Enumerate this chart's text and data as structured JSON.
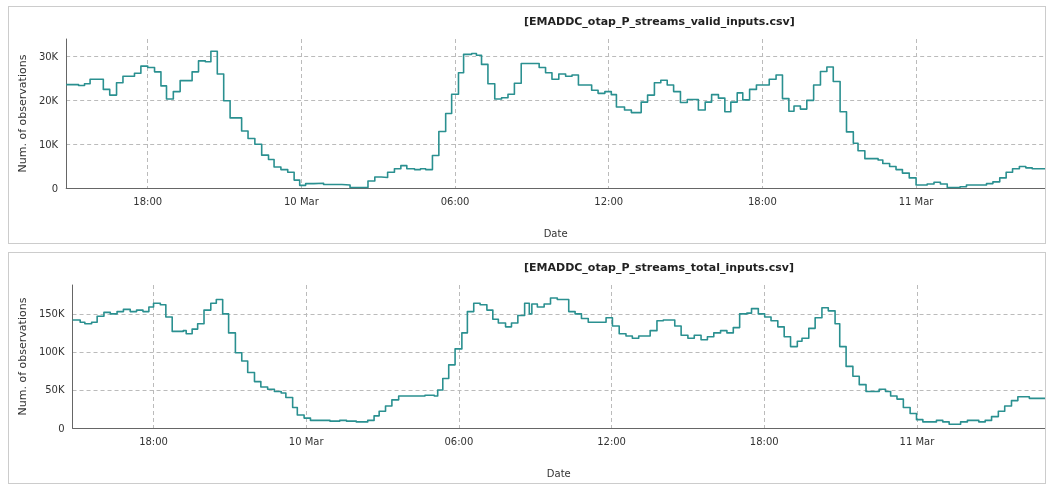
{
  "chart_data": [
    {
      "type": "step",
      "title": "[EMADDC_otap_P_streams_valid_inputs.csv]",
      "xlabel": "Date",
      "ylabel": "Num. of observations",
      "grid": true,
      "xlim": [
        "--03-09T14:49",
        "--03-11T05:02"
      ],
      "ylim": [
        0,
        34000
      ],
      "xticks": [
        {
          "value": "--03-09T18:00",
          "label": "18:00"
        },
        {
          "value": "--03-10",
          "label": "10 Mar"
        },
        {
          "value": "--03-10T06:00",
          "label": "06:00"
        },
        {
          "value": "--03-10T12:00",
          "label": "12:00"
        },
        {
          "value": "--03-10T18:00",
          "label": "18:00"
        },
        {
          "value": "--03-11",
          "label": "11 Mar"
        }
      ],
      "yticks": [
        0,
        {
          "value": 10000,
          "label": "10K"
        },
        {
          "value": 20000,
          "label": "20K"
        },
        {
          "value": 30000,
          "label": "30K"
        }
      ],
      "series": [
        {
          "color": "#2a9090",
          "x": [
            "--03-09T14:49",
            "--03-09T15:18",
            "--03-09T15:32",
            "--03-09T15:45",
            "--03-09T16:16",
            "--03-09T16:31",
            "--03-09T16:47",
            "--03-09T17:02",
            "--03-09T17:29",
            "--03-09T17:44",
            "--03-09T18:00",
            "--03-09T18:16",
            "--03-09T18:31",
            "--03-09T18:44",
            "--03-09T19:00",
            "--03-09T19:16",
            "--03-09T19:44",
            "--03-09T19:59",
            "--03-09T20:15",
            "--03-09T20:28",
            "--03-09T20:43",
            "--03-09T20:58",
            "--03-09T21:13",
            "--03-09T21:40",
            "--03-09T21:55",
            "--03-09T22:11",
            "--03-09T22:27",
            "--03-09T22:43",
            "--03-09T22:56",
            "--03-09T23:12",
            "--03-09T23:28",
            "--03-09T23:43",
            "--03-09T23:56",
            "--03-10T00:10",
            "--03-10T00:29",
            "--03-10T00:52",
            "--03-10T01:15",
            "--03-10T01:35",
            "--03-10T01:54",
            "--03-10T02:20",
            "--03-10T02:36",
            "--03-10T02:52",
            "--03-10T03:07",
            "--03-10T03:22",
            "--03-10T03:38",
            "--03-10T03:53",
            "--03-10T04:07",
            "--03-10T04:25",
            "--03-10T04:39",
            "--03-10T04:51",
            "--03-10T05:07",
            "--03-10T05:22",
            "--03-10T05:38",
            "--03-10T05:52",
            "--03-10T06:08",
            "--03-10T06:20",
            "--03-10T06:39",
            "--03-10T06:50",
            "--03-10T07:02",
            "--03-10T07:17",
            "--03-10T07:33",
            "--03-10T07:49",
            "--03-10T08:04",
            "--03-10T08:19",
            "--03-10T08:35",
            "--03-10T09:17",
            "--03-10T09:32",
            "--03-10T09:47",
            "--03-10T10:03",
            "--03-10T10:19",
            "--03-10T10:34",
            "--03-10T10:49",
            "--03-10T11:20",
            "--03-10T11:35",
            "--03-10T11:51",
            "--03-10T12:06",
            "--03-10T12:18",
            "--03-10T12:37",
            "--03-10T12:53",
            "--03-10T13:16",
            "--03-10T13:31",
            "--03-10T13:47",
            "--03-10T14:02",
            "--03-10T14:17",
            "--03-10T14:32",
            "--03-10T14:48",
            "--03-10T15:04",
            "--03-10T15:30",
            "--03-10T15:46",
            "--03-10T16:01",
            "--03-10T16:17",
            "--03-10T16:32",
            "--03-10T16:46",
            "--03-10T17:01",
            "--03-10T17:14",
            "--03-10T17:30",
            "--03-10T17:46",
            "--03-10T18:16",
            "--03-10T18:32",
            "--03-10T18:47",
            "--03-10T19:02",
            "--03-10T19:14",
            "--03-10T19:29",
            "--03-10T19:44",
            "--03-10T20:00",
            "--03-10T20:16",
            "--03-10T20:31",
            "--03-10T20:46",
            "--03-10T21:02",
            "--03-10T21:17",
            "--03-10T21:33",
            "--03-10T21:44",
            "--03-10T22:00",
            "--03-10T22:31",
            "--03-10T22:42",
            "--03-10T22:58",
            "--03-10T23:13",
            "--03-10T23:28",
            "--03-10T23:44",
            "--03-11T00:00",
            "--03-11T00:26",
            "--03-11T00:42",
            "--03-11T00:57",
            "--03-11T01:13",
            "--03-11T01:43",
            "--03-11T01:58",
            "--03-11T02:45",
            "--03-11T03:00",
            "--03-11T03:16",
            "--03-11T03:31",
            "--03-11T03:46",
            "--03-11T04:02",
            "--03-11T04:17",
            "--03-11T04:32",
            "--03-11T05:02"
          ],
          "values": [
            23600,
            23400,
            23800,
            24800,
            22500,
            21200,
            24000,
            25500,
            26200,
            27800,
            27500,
            26500,
            23300,
            20300,
            22000,
            24500,
            26500,
            29000,
            28800,
            31200,
            26000,
            19900,
            16000,
            13000,
            11300,
            10000,
            7500,
            6500,
            4800,
            4200,
            3600,
            1800,
            600,
            1000,
            1100,
            800,
            800,
            700,
            100,
            100,
            1600,
            2500,
            2400,
            3600,
            4400,
            5100,
            4400,
            4200,
            4400,
            4200,
            7400,
            12900,
            17000,
            21400,
            26300,
            30500,
            30700,
            30300,
            28200,
            23800,
            20300,
            20600,
            21400,
            23900,
            28400,
            27500,
            26300,
            24800,
            26000,
            25500,
            25800,
            23500,
            22300,
            21600,
            22000,
            21300,
            18500,
            17800,
            17200,
            19600,
            21200,
            24000,
            24600,
            23500,
            22000,
            19500,
            20200,
            17800,
            19600,
            21300,
            20500,
            17400,
            19600,
            21700,
            20100,
            22500,
            23500,
            24800,
            25800,
            20400,
            17500,
            18700,
            18000,
            20000,
            23500,
            26600,
            27600,
            24300,
            17400,
            12800,
            10200,
            8500,
            6700,
            6400,
            5600,
            4900,
            4200,
            3400,
            2300,
            700,
            900,
            1300,
            900,
            100,
            300,
            700,
            1000,
            1400,
            2300,
            3600,
            4400,
            4900,
            4600,
            4400,
            4400
          ]
        }
      ]
    },
    {
      "type": "step",
      "title": "[EMADDC_otap_P_streams_total_inputs.csv]",
      "xlabel": "Date",
      "ylabel": "Num. of observations",
      "grid": true,
      "xlim": [
        "--03-09T14:49",
        "--03-11T05:02"
      ],
      "ylim": [
        0,
        188000
      ],
      "xticks": [
        {
          "value": "--03-09T18:00",
          "label": "18:00"
        },
        {
          "value": "--03-10",
          "label": "10 Mar"
        },
        {
          "value": "--03-10T06:00",
          "label": "06:00"
        },
        {
          "value": "--03-10T12:00",
          "label": "12:00"
        },
        {
          "value": "--03-10T18:00",
          "label": "18:00"
        },
        {
          "value": "--03-11",
          "label": "11 Mar"
        }
      ],
      "yticks": [
        0,
        {
          "value": 50000,
          "label": "50K"
        },
        {
          "value": 100000,
          "label": "100K"
        },
        {
          "value": 150000,
          "label": "150K"
        }
      ],
      "series": [
        {
          "color": "#2a9090",
          "x": [
            "--03-09T14:49",
            "--03-09T15:07",
            "--03-09T15:18",
            "--03-09T15:34",
            "--03-09T15:47",
            "--03-09T16:03",
            "--03-09T16:18",
            "--03-09T16:34",
            "--03-09T16:49",
            "--03-09T17:05",
            "--03-09T17:20",
            "--03-09T17:35",
            "--03-09T17:49",
            "--03-09T18:00",
            "--03-09T18:16",
            "--03-09T18:29",
            "--03-09T18:44",
            "--03-09T19:10",
            "--03-09T19:17",
            "--03-09T19:31",
            "--03-09T19:44",
            "--03-09T19:59",
            "--03-09T20:15",
            "--03-09T20:28",
            "--03-09T20:43",
            "--03-09T20:57",
            "--03-09T21:13",
            "--03-09T21:28",
            "--03-09T21:42",
            "--03-09T21:58",
            "--03-09T22:13",
            "--03-09T22:29",
            "--03-09T22:45",
            "--03-09T23:01",
            "--03-09T23:12",
            "--03-09T23:28",
            "--03-09T23:39",
            "--03-09T23:55",
            "--03-10T00:10",
            "--03-10T00:41",
            "--03-10T00:56",
            "--03-10T01:19",
            "--03-10T01:35",
            "--03-10T01:58",
            "--03-10T02:25",
            "--03-10T02:40",
            "--03-10T02:52",
            "--03-10T03:07",
            "--03-10T03:22",
            "--03-10T03:38",
            "--03-10T04:09",
            "--03-10T04:40",
            "--03-10T05:02",
            "--03-10T05:10",
            "--03-10T05:22",
            "--03-10T05:36",
            "--03-10T05:51",
            "--03-10T06:07",
            "--03-10T06:20",
            "--03-10T06:35",
            "--03-10T06:50",
            "--03-10T07:06",
            "--03-10T07:20",
            "--03-10T07:33",
            "--03-10T07:50",
            "--03-10T08:04",
            "--03-10T08:19",
            "--03-10T08:35",
            "--03-10T08:46",
            "--03-10T08:52",
            "--03-10T09:05",
            "--03-10T09:21",
            "--03-10T09:36",
            "--03-10T09:52",
            "--03-10T10:19",
            "--03-10T10:34",
            "--03-10T10:49",
            "--03-10T11:05",
            "--03-10T11:47",
            "--03-10T12:02",
            "--03-10T12:18",
            "--03-10T12:34",
            "--03-10T12:49",
            "--03-10T13:04",
            "--03-10T13:31",
            "--03-10T13:47",
            "--03-10T14:02",
            "--03-10T14:29",
            "--03-10T14:44",
            "--03-10T15:00",
            "--03-10T15:15",
            "--03-10T15:31",
            "--03-10T15:46",
            "--03-10T16:01",
            "--03-10T16:17",
            "--03-10T16:32",
            "--03-10T16:47",
            "--03-10T17:02",
            "--03-10T17:19",
            "--03-10T17:30",
            "--03-10T17:46",
            "--03-10T18:01",
            "--03-10T18:16",
            "--03-10T18:32",
            "--03-10T18:47",
            "--03-10T19:02",
            "--03-10T19:18",
            "--03-10T19:29",
            "--03-10T19:45",
            "--03-10T20:00",
            "--03-10T20:16",
            "--03-10T20:31",
            "--03-10T20:47",
            "--03-10T20:58",
            "--03-10T21:13",
            "--03-10T21:29",
            "--03-10T21:44",
            "--03-10T22:00",
            "--03-10T22:31",
            "--03-10T22:46",
            "--03-10T22:58",
            "--03-10T23:13",
            "--03-10T23:28",
            "--03-10T23:44",
            "--03-10T23:59",
            "--03-11T00:14",
            "--03-11T00:46",
            "--03-11T01:01",
            "--03-11T01:16",
            "--03-11T01:43",
            "--03-11T01:59",
            "--03-11T02:26",
            "--03-11T02:41",
            "--03-11T02:56",
            "--03-11T03:12",
            "--03-11T03:27",
            "--03-11T03:43",
            "--03-11T03:58",
            "--03-11T04:25",
            "--03-11T05:02"
          ],
          "values": [
            142000,
            139000,
            137000,
            139000,
            147000,
            152000,
            150000,
            153000,
            156000,
            153000,
            155000,
            153000,
            159000,
            164000,
            162000,
            146000,
            127000,
            128000,
            124000,
            130000,
            137000,
            155000,
            164000,
            169000,
            150000,
            125000,
            99000,
            88000,
            73000,
            61000,
            54000,
            51000,
            48000,
            46000,
            40000,
            27000,
            17000,
            13000,
            10000,
            10000,
            9000,
            10000,
            9000,
            8000,
            10000,
            16000,
            22000,
            29000,
            37000,
            42000,
            42000,
            43000,
            42000,
            50000,
            65000,
            83000,
            104000,
            125000,
            153000,
            164000,
            162000,
            155000,
            143000,
            138000,
            133000,
            138000,
            148000,
            164000,
            150000,
            163000,
            159000,
            163000,
            171000,
            169000,
            153000,
            150000,
            144000,
            139000,
            145000,
            134000,
            124000,
            121000,
            118000,
            121000,
            128000,
            141000,
            142000,
            134000,
            122000,
            118000,
            122000,
            116000,
            120000,
            125000,
            128000,
            125000,
            132000,
            150000,
            151000,
            157000,
            150000,
            146000,
            141000,
            133000,
            120000,
            107000,
            114000,
            118000,
            131000,
            145000,
            158000,
            154000,
            137000,
            107000,
            81000,
            68000,
            57000,
            48000,
            51000,
            48000,
            42000,
            38000,
            27000,
            19000,
            11000,
            8000,
            10000,
            8000,
            5000,
            8000,
            10000,
            8000,
            10000,
            15000,
            22000,
            29000,
            36000,
            41000,
            39000,
            39000
          ]
        }
      ]
    }
  ]
}
